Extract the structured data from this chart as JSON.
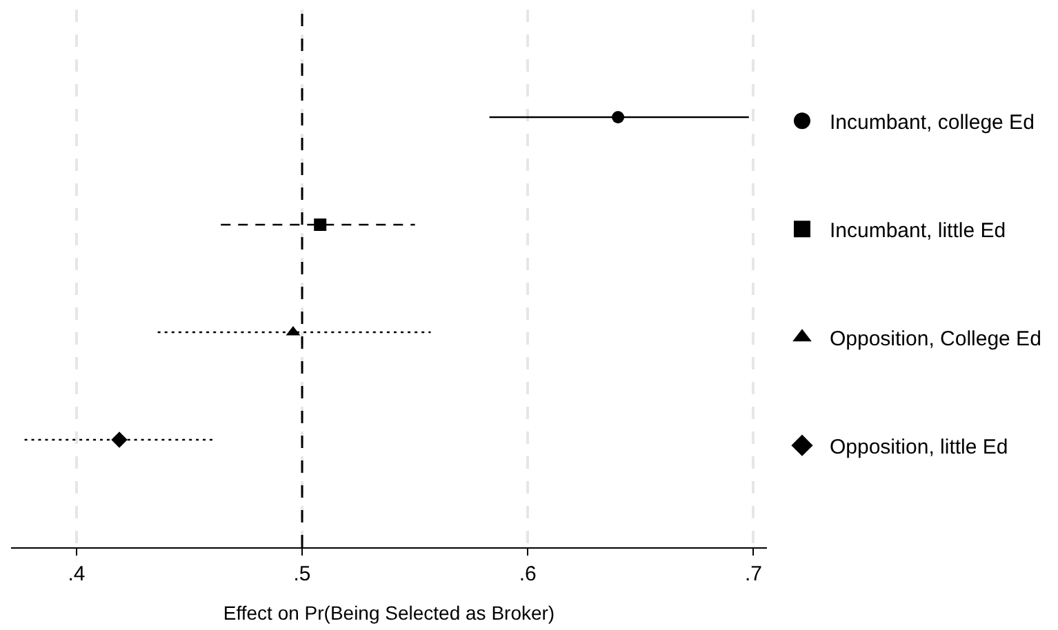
{
  "chart_data": {
    "type": "scatter",
    "orientation": "horizontal",
    "xlabel": "Effect on Pr(Being Selected as Broker)",
    "categories": [
      null,
      null,
      null,
      null
    ],
    "series": [
      {
        "name": "Incumbant, college Ed",
        "color": "#000000",
        "marker": "circle",
        "line_style": "solid",
        "values": [
          0.64,
          null,
          null,
          null
        ],
        "errors": [
          [
            0.583,
            0.698
          ],
          null,
          null,
          null
        ]
      },
      {
        "name": "Incumbant, little Ed",
        "color": "#000000",
        "marker": "square",
        "line_style": "dashed",
        "values": [
          null,
          0.508,
          null,
          null
        ],
        "errors": [
          null,
          [
            0.464,
            0.55
          ],
          null,
          null
        ]
      },
      {
        "name": "Opposition, College Ed",
        "color": "#000000",
        "marker": "triangle",
        "line_style": "dotted",
        "values": [
          null,
          null,
          0.496,
          null
        ],
        "errors": [
          null,
          null,
          [
            0.436,
            0.557
          ],
          null
        ]
      },
      {
        "name": "Opposition, little Ed",
        "color": "#000000",
        "marker": "diamond",
        "line_style": "dotted",
        "values": [
          null,
          null,
          null,
          0.419
        ],
        "errors": [
          null,
          null,
          null,
          [
            0.377,
            0.461
          ]
        ]
      }
    ],
    "xlim": [
      0.371,
      0.706
    ],
    "xticks": [
      {
        "value": 0.4,
        "label": ".4"
      },
      {
        "value": 0.5,
        "label": ".5"
      },
      {
        "value": 0.6,
        "label": ".6"
      },
      {
        "value": 0.7,
        "label": ".7"
      }
    ],
    "ref_lines": [
      {
        "axis": "x",
        "value": 0.5,
        "label": null,
        "color": "#000000",
        "line_style": "dashed"
      }
    ],
    "grid": "x",
    "legend": "right",
    "tick_labels": "x"
  }
}
